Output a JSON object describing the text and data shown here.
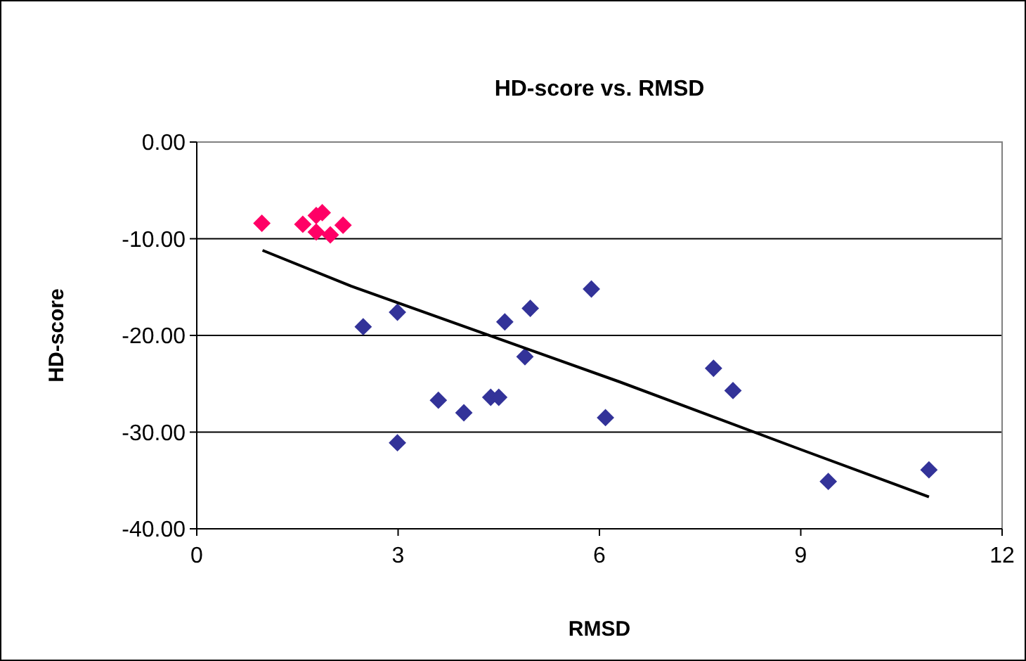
{
  "chart_data": {
    "type": "scatter",
    "title": "HD-score vs. RMSD",
    "xlabel": "RMSD",
    "ylabel": "HD-score",
    "xlim": [
      0,
      12
    ],
    "xticks": [
      0,
      3,
      6,
      9,
      12
    ],
    "ylim": [
      -40,
      0
    ],
    "yticks": [
      {
        "value": 0,
        "label": "0.00"
      },
      {
        "value": -10,
        "label": "-10.00"
      },
      {
        "value": -20,
        "label": "-20.00"
      },
      {
        "value": -30,
        "label": "-30.00"
      },
      {
        "value": -40,
        "label": "-40.00"
      }
    ],
    "grid": "y",
    "marker": "diamond",
    "series": [
      {
        "color": "#ff0066",
        "x": [
          0.97,
          1.58,
          1.78,
          1.87,
          1.78,
          1.99,
          2.18
        ],
        "values": [
          -8.4,
          -8.5,
          -7.6,
          -7.3,
          -9.3,
          -9.6,
          -8.6
        ]
      },
      {
        "color": "#333399",
        "x": [
          2.48,
          2.99,
          2.99,
          3.6,
          3.98,
          4.38,
          4.5,
          4.59,
          4.89,
          4.97,
          5.88,
          6.09,
          7.7,
          7.99,
          9.41,
          10.91
        ],
        "values": [
          -19.1,
          -17.6,
          -31.1,
          -26.7,
          -28.0,
          -26.4,
          -26.4,
          -18.6,
          -22.2,
          -17.2,
          -15.2,
          -28.5,
          -23.4,
          -25.7,
          -35.1,
          -33.9
        ]
      },
      {
        "type": "line",
        "marker": "none",
        "color": "#000000",
        "x": [
          0.98,
          2.3,
          6.3,
          9.0,
          10.91
        ],
        "values": [
          -11.2,
          -14.9,
          -24.8,
          -31.8,
          -36.7
        ]
      }
    ]
  }
}
